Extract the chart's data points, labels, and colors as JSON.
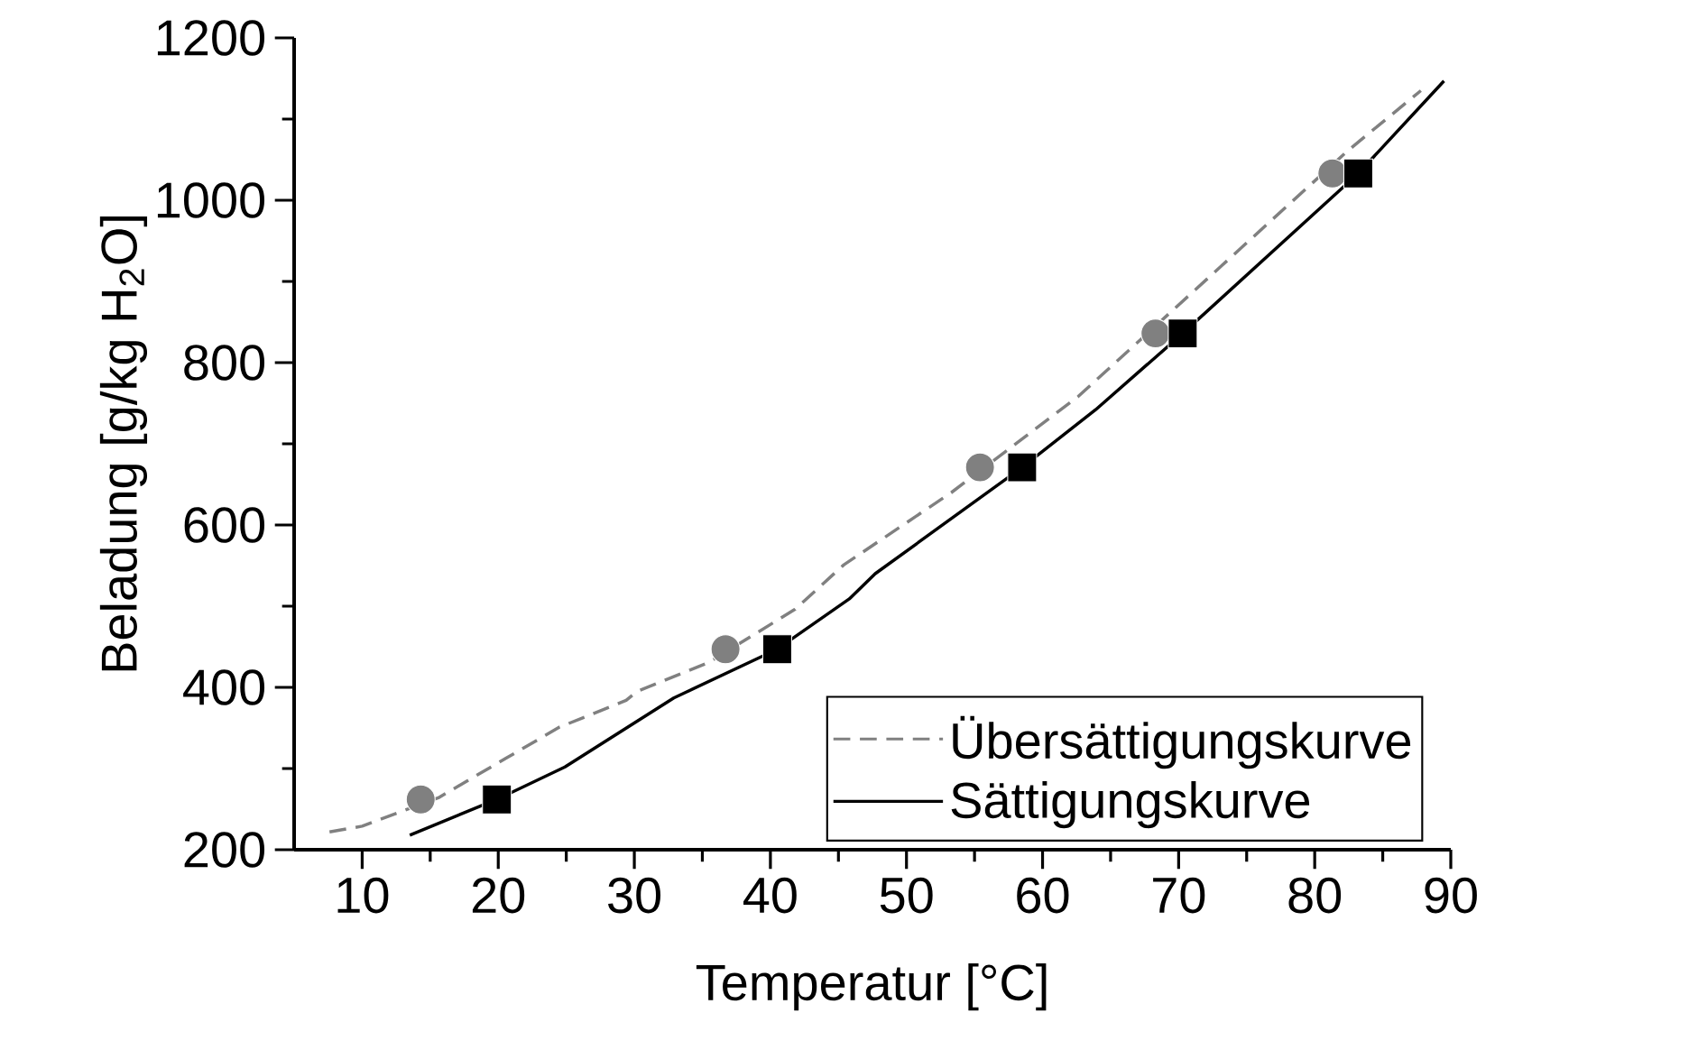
{
  "chart_data": {
    "type": "line",
    "xlabel": "Temperatur [°C]",
    "ylabel": "Beladung [g/kg H$_{2}$O]",
    "xlim": [
      5,
      90
    ],
    "xticks": [
      10,
      20,
      30,
      40,
      50,
      60,
      70,
      80,
      90
    ],
    "ylim": [
      200,
      1200
    ],
    "yticks": [
      200,
      400,
      600,
      800,
      1000,
      1200
    ],
    "grid": false,
    "legend": "bottom right",
    "series": [
      {
        "name": "Übersättigungskurve",
        "line_style": "dashed",
        "marker": "none",
        "color": "#808080",
        "x": [
          7.6,
          10,
          15.6,
          20.6,
          24.5,
          29.4,
          30.2,
          35.5,
          41.8,
          45.4,
          53.3,
          62.6,
          73.2,
          82.5,
          87.8
        ],
        "values": [
          222,
          229,
          264,
          313,
          351,
          384,
          395,
          431,
          496,
          551,
          640,
          758,
          920,
          1062,
          1135
        ]
      },
      {
        "name": "Sättigungskurve",
        "line_style": "solid",
        "marker": "none",
        "color": "#000000",
        "x": [
          13.5,
          19.9,
          24.9,
          32.9,
          40.5,
          45.8,
          47.7,
          58.5,
          63.9,
          70.3,
          83.2,
          89.5
        ],
        "values": [
          218,
          262,
          302,
          387,
          447,
          509,
          540,
          671,
          742,
          836,
          1033,
          1147
        ]
      },
      {
        "type": "scatter",
        "marker": "circle",
        "color": "#808080",
        "x": [
          14.3,
          36.7,
          55.4,
          68.3,
          81.3
        ],
        "values": [
          262,
          447,
          671,
          836,
          1033
        ]
      },
      {
        "type": "scatter",
        "marker": "square",
        "color": "#000000",
        "x": [
          19.9,
          40.5,
          58.5,
          70.3,
          83.2
        ],
        "values": [
          262,
          447,
          671,
          836,
          1033
        ]
      }
    ]
  }
}
